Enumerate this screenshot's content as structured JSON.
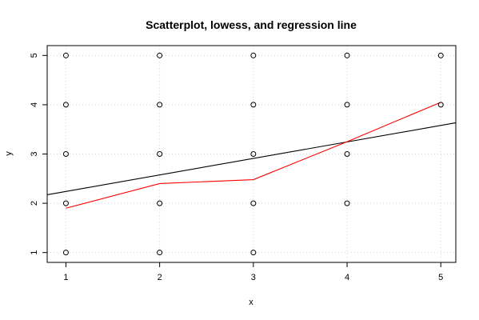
{
  "chart_data": {
    "type": "scatter",
    "title": "Scatterplot, lowess, and regression line",
    "xlabel": "x",
    "ylabel": "y",
    "xlim": [
      0.8,
      5.16
    ],
    "ylim": [
      0.8,
      5.2
    ],
    "x_ticks": [
      "1",
      "2",
      "3",
      "4",
      "5"
    ],
    "y_ticks": [
      "1",
      "2",
      "3",
      "4",
      "5"
    ],
    "grid": true,
    "points": [
      {
        "x": 1,
        "y": 1
      },
      {
        "x": 1,
        "y": 2
      },
      {
        "x": 1,
        "y": 3
      },
      {
        "x": 1,
        "y": 4
      },
      {
        "x": 1,
        "y": 5
      },
      {
        "x": 2,
        "y": 1
      },
      {
        "x": 2,
        "y": 2
      },
      {
        "x": 2,
        "y": 3
      },
      {
        "x": 2,
        "y": 4
      },
      {
        "x": 2,
        "y": 5
      },
      {
        "x": 3,
        "y": 1
      },
      {
        "x": 3,
        "y": 2
      },
      {
        "x": 3,
        "y": 3
      },
      {
        "x": 3,
        "y": 4
      },
      {
        "x": 3,
        "y": 5
      },
      {
        "x": 4,
        "y": 2
      },
      {
        "x": 4,
        "y": 3
      },
      {
        "x": 4,
        "y": 4
      },
      {
        "x": 4,
        "y": 5
      },
      {
        "x": 5,
        "y": 4
      },
      {
        "x": 5,
        "y": 5
      }
    ],
    "lowess": {
      "color": "#ff0000",
      "x": [
        1,
        2,
        3,
        4,
        5
      ],
      "y": [
        1.9,
        2.4,
        2.48,
        3.25,
        4.05
      ]
    },
    "regression": {
      "color": "#000000",
      "intercept": 1.905,
      "slope": 0.335
    }
  }
}
